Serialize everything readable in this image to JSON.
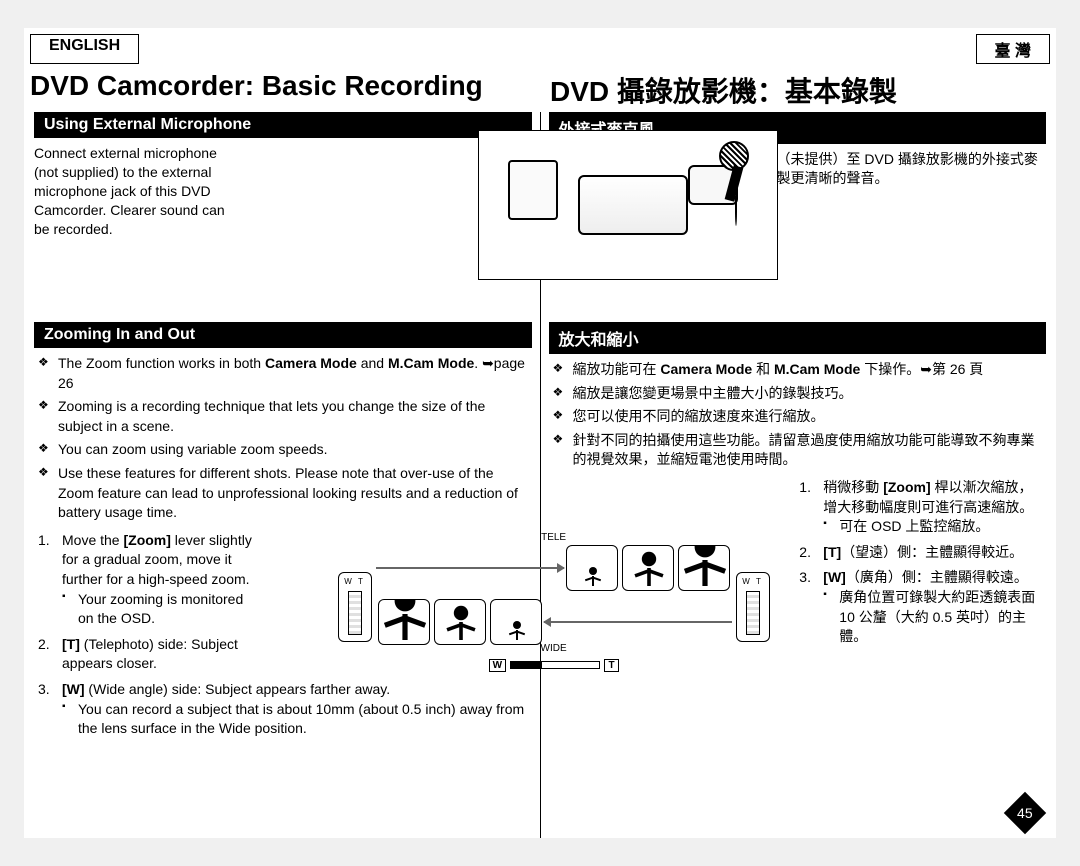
{
  "lang": {
    "left": "ENGLISH",
    "right": "臺 灣"
  },
  "title": {
    "left": "DVD Camcorder: Basic Recording",
    "right": "DVD 攝錄放影機：基本錄製"
  },
  "section1": {
    "heading_en": "Using External Microphone",
    "heading_zh": "外接式麥克風",
    "para_en": "Connect external microphone (not supplied) to the external microphone jack of this DVD Camcorder. Clearer sound can be recorded.",
    "para_zh": "連接外接麥克風（未提供）至 DVD 攝錄放影機的外接式麥克風插孔。可錄製更清晰的聲音。"
  },
  "section2": {
    "heading_en": "Zooming In and Out",
    "heading_zh": "放大和縮小",
    "bullets_en": [
      "The Zoom function works in both <b>Camera Mode</b> and <b>M.Cam Mode</b>. ➥page 26",
      "Zooming is a recording technique that lets you change the size of the subject in a scene.",
      "You can zoom using variable zoom speeds.",
      "Use these features for different shots. Please note that over-use of the Zoom feature can lead to unprofessional looking results and a reduction of battery usage time."
    ],
    "bullets_zh": [
      "縮放功能可在 <b>Camera Mode</b> 和 <b>M.Cam Mode</b> 下操作。➥第 26 頁",
      "縮放是讓您變更場景中主體大小的錄製技巧。",
      "您可以使用不同的縮放速度來進行縮放。",
      "針對不同的拍攝使用這些功能。請留意過度使用縮放功能可能導致不夠專業的視覺效果，並縮短電池使用時間。"
    ],
    "steps_en": [
      {
        "text": "Move the <b>[Zoom]</b> lever slightly for a gradual zoom, move it further for a high-speed zoom.",
        "sub": [
          "Your zooming is monitored on the OSD."
        ]
      },
      {
        "text": "<b>[T]</b> (Telephoto) side: Subject appears closer."
      },
      {
        "text": "<b>[W]</b> (Wide angle) side: Subject appears farther away.",
        "sub": [
          "You can record a subject that is about 10mm (about 0.5 inch) away from the lens surface in the Wide position."
        ]
      }
    ],
    "steps_zh": [
      {
        "text": "稍微移動 <b>[Zoom]</b> 桿以漸次縮放，增大移動幅度則可進行高速縮放。",
        "sub": [
          "可在 OSD 上監控縮放。"
        ]
      },
      {
        "text": "<b>[T]</b>（望遠）側：主體顯得較近。"
      },
      {
        "text": "<b>[W]</b>（廣角）側：主體顯得較遠。",
        "sub": [
          "廣角位置可錄製大約距透鏡表面10 公釐（大約 0.5 英吋）的主體。"
        ]
      }
    ]
  },
  "diagram": {
    "tele": "TELE",
    "wide": "WIDE",
    "w": "W",
    "t": "T"
  },
  "page_number": "45"
}
